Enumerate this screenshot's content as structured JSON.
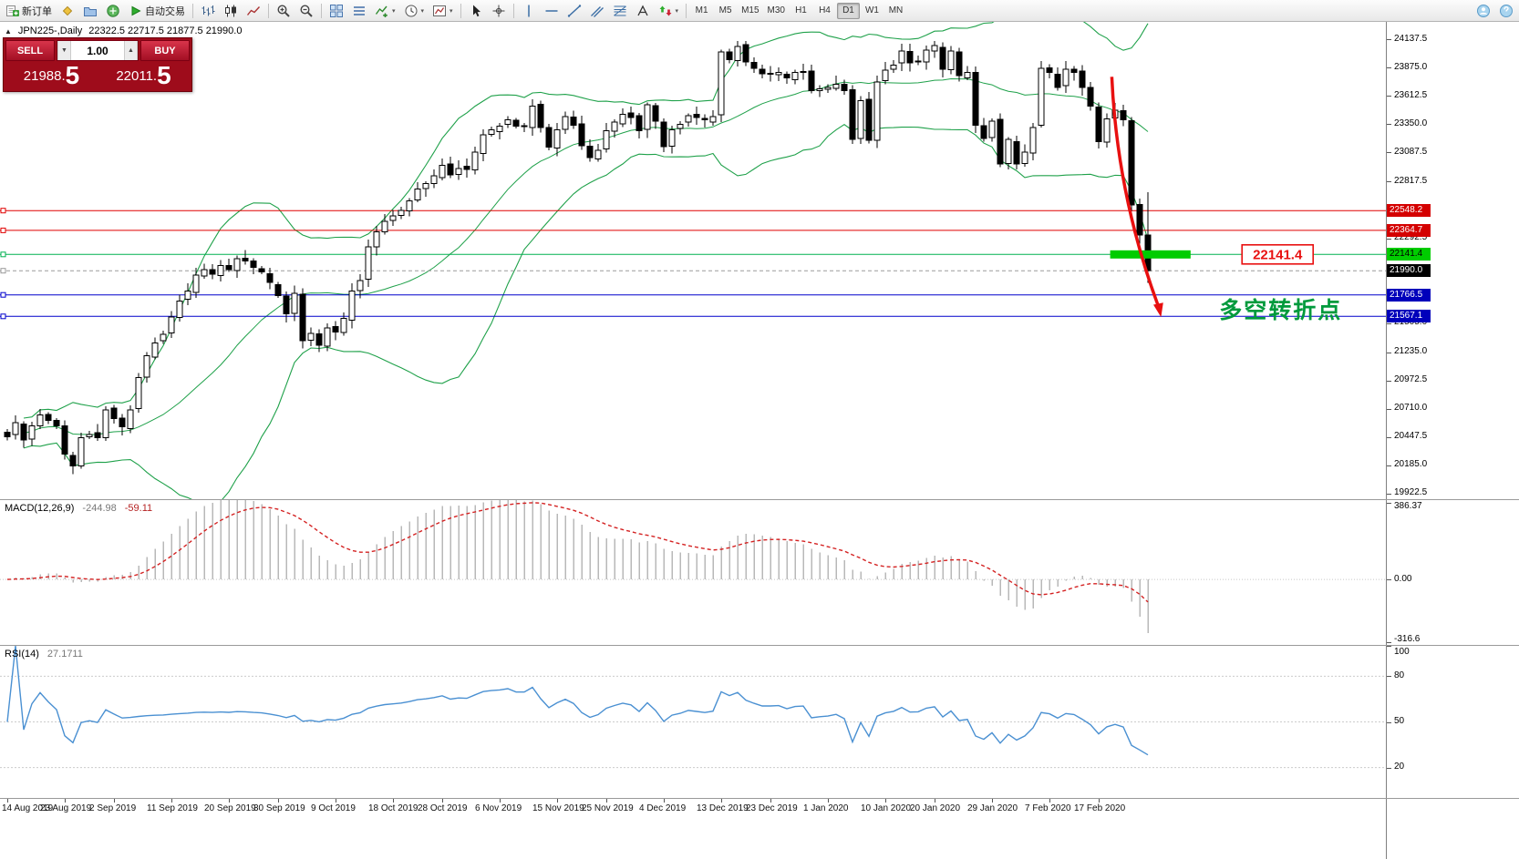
{
  "toolbar": {
    "items": [
      {
        "type": "button",
        "name": "new-order-button",
        "icon": "new-order-icon",
        "label": "新订单"
      },
      {
        "type": "button",
        "name": "market-watch-button",
        "icon": "market-watch-icon"
      },
      {
        "type": "button",
        "name": "profiles-button",
        "icon": "profiles-icon"
      },
      {
        "type": "button",
        "name": "data-window-button",
        "icon": "data-window-icon"
      },
      {
        "type": "button",
        "name": "auto-trading-button",
        "icon": "autotrade-icon",
        "label": "自动交易"
      },
      {
        "type": "sep"
      },
      {
        "type": "button",
        "name": "bar-chart-button",
        "icon": "bar-chart-icon"
      },
      {
        "type": "button",
        "name": "candlestick-button",
        "icon": "candlestick-icon"
      },
      {
        "type": "button",
        "name": "line-chart-button",
        "icon": "line-chart-icon"
      },
      {
        "type": "sep"
      },
      {
        "type": "button",
        "name": "zoom-in-button",
        "icon": "zoom-in-icon"
      },
      {
        "type": "button",
        "name": "zoom-out-button",
        "icon": "zoom-out-icon"
      },
      {
        "type": "sep"
      },
      {
        "type": "button",
        "name": "tile-windows-button",
        "icon": "tile-windows-icon"
      },
      {
        "type": "button",
        "name": "arrange-windows-button",
        "icon": "arrange-icon"
      },
      {
        "type": "button",
        "name": "indicators-button",
        "icon": "indicators-icon",
        "dropdown": true
      },
      {
        "type": "button",
        "name": "periods-button",
        "icon": "periods-icon",
        "dropdown": true
      },
      {
        "type": "button",
        "name": "templates-button",
        "icon": "templates-icon",
        "dropdown": true
      },
      {
        "type": "sep"
      },
      {
        "type": "button",
        "name": "cursor-button",
        "icon": "cursor-icon"
      },
      {
        "type": "button",
        "name": "crosshair-button",
        "icon": "crosshair-icon"
      },
      {
        "type": "sep"
      },
      {
        "type": "button",
        "name": "vertical-line-button",
        "icon": "vline-icon"
      },
      {
        "type": "button",
        "name": "horizontal-line-button",
        "icon": "hline-icon"
      },
      {
        "type": "button",
        "name": "trendline-button",
        "icon": "trendline-icon"
      },
      {
        "type": "button",
        "name": "channel-button",
        "icon": "channel-icon"
      },
      {
        "type": "button",
        "name": "fibonacci-button",
        "icon": "fibonacci-icon"
      },
      {
        "type": "button",
        "name": "text-button",
        "icon": "text-icon"
      },
      {
        "type": "button",
        "name": "arrows-button",
        "icon": "arrows-icon",
        "dropdown": true
      },
      {
        "type": "sep"
      }
    ],
    "timeframes": [
      {
        "label": "M1"
      },
      {
        "label": "M5"
      },
      {
        "label": "M15"
      },
      {
        "label": "M30"
      },
      {
        "label": "H1"
      },
      {
        "label": "H4"
      },
      {
        "label": "D1",
        "active": true
      },
      {
        "label": "W1"
      },
      {
        "label": "MN"
      }
    ],
    "right_items": [
      {
        "name": "community-button",
        "icon": "community-icon"
      },
      {
        "name": "help-button",
        "icon": "help-icon"
      }
    ]
  },
  "chart_header": {
    "expander_icon": "▲",
    "symbol_period": "JPN225-,Daily",
    "ohlc": "22322.5 22717.5 21877.5 21990.0"
  },
  "trade_panel": {
    "sell_label": "SELL",
    "buy_label": "BUY",
    "volume": "1.00",
    "volume_down_icon": "▼",
    "volume_up_icon": "▲",
    "sell_price_main": "21988.",
    "sell_price_pip": "5",
    "buy_price_main": "22011.",
    "buy_price_pip": "5"
  },
  "indicator_headers": {
    "macd_name": "MACD(12,26,9)",
    "macd_value": "-244.98",
    "macd_signal": "-59.11",
    "rsi_name": "RSI(14)",
    "rsi_value": "27.1711"
  },
  "colors": {
    "level_red": "#e00000",
    "level_green": "#00b050",
    "level_blue": "#0000cc",
    "current_price_line": "#9a9a9a",
    "highlight_green": "#00cc00",
    "arrow_red": "#e81010",
    "note_green": "#009a3c",
    "panel_red": "#9e0c1b",
    "bollinger_green": "#1fa14a",
    "macd_hist": "#b8b8b8",
    "macd_signal": "#d42222",
    "rsi_blue": "#4a90d2"
  },
  "chart_data": {
    "type": "candlestick",
    "symbol": "JPN225",
    "timeframe": "Daily",
    "price_range": [
      19870,
      24300
    ],
    "axis_ticks": [
      24137.5,
      23875.0,
      23612.5,
      23350.0,
      23087.5,
      22817.5,
      22292.5,
      21505.0,
      21235.0,
      20972.5,
      20710.0,
      20447.5,
      20185.0,
      19922.5
    ],
    "closes": [
      20450,
      20580,
      20420,
      20550,
      20650,
      20600,
      20550,
      20290,
      20180,
      20440,
      20470,
      20440,
      20700,
      20620,
      20540,
      20700,
      21000,
      21200,
      21320,
      21400,
      21560,
      21710,
      21800,
      21950,
      22000,
      21960,
      22040,
      22000,
      22100,
      22080,
      22020,
      21980,
      21880,
      21760,
      21590,
      21780,
      21340,
      21410,
      21300,
      21460,
      21420,
      21550,
      21800,
      21900,
      22210,
      22350,
      22450,
      22500,
      22550,
      22640,
      22750,
      22800,
      22870,
      22970,
      22880,
      22940,
      22930,
      23090,
      23250,
      23300,
      23330,
      23390,
      23330,
      23330,
      23520,
      23320,
      23140,
      23300,
      23420,
      23340,
      23150,
      23040,
      23110,
      23290,
      23370,
      23440,
      23410,
      23290,
      23530,
      23380,
      23140,
      23300,
      23350,
      23430,
      23410,
      23390,
      23420,
      24020,
      23950,
      24070,
      23930,
      23870,
      23820,
      23820,
      23830,
      23780,
      23830,
      23840,
      23660,
      23680,
      23690,
      23720,
      23660,
      23210,
      23570,
      23200,
      23740,
      23850,
      23900,
      24030,
      23920,
      23930,
      24040,
      24080,
      23860,
      24030,
      23800,
      23830,
      23340,
      23220,
      23380,
      22980,
      23210,
      22980,
      23090,
      23320,
      23870,
      23830,
      23690,
      23860,
      23830,
      23690,
      23520,
      23190,
      23400,
      23480,
      23390,
      22600,
      22320,
      21990
    ],
    "last_candle": [
      22322.5,
      22717.5,
      21877.5,
      21990.0
    ],
    "date_labels": [
      {
        "i": 0,
        "t": "14 Aug 2019"
      },
      {
        "i": 7,
        "t": "23 Aug 2019"
      },
      {
        "i": 13,
        "t": "2 Sep 2019"
      },
      {
        "i": 20,
        "t": "11 Sep 2019"
      },
      {
        "i": 27,
        "t": "20 Sep 2019"
      },
      {
        "i": 33,
        "t": "30 Sep 2019"
      },
      {
        "i": 40,
        "t": "9 Oct 2019"
      },
      {
        "i": 47,
        "t": "18 Oct 2019"
      },
      {
        "i": 53,
        "t": "28 Oct 2019"
      },
      {
        "i": 60,
        "t": "6 Nov 2019"
      },
      {
        "i": 67,
        "t": "15 Nov 2019"
      },
      {
        "i": 73,
        "t": "25 Nov 2019"
      },
      {
        "i": 80,
        "t": "4 Dec 2019"
      },
      {
        "i": 87,
        "t": "13 Dec 2019"
      },
      {
        "i": 93,
        "t": "23 Dec 2019"
      },
      {
        "i": 100,
        "t": "1 Jan 2020"
      },
      {
        "i": 107,
        "t": "10 Jan 2020"
      },
      {
        "i": 113,
        "t": "20 Jan 2020"
      },
      {
        "i": 120,
        "t": "29 Jan 2020"
      },
      {
        "i": 127,
        "t": "7 Feb 2020"
      },
      {
        "i": 133,
        "t": "17 Feb 2020"
      }
    ],
    "levels": [
      {
        "price": 22548.2,
        "color": "#e00000",
        "label": "22548.2",
        "label_bg": "#d40000",
        "label_fg": "#ffffff",
        "name": "resistance-line-1"
      },
      {
        "price": 22364.7,
        "color": "#e00000",
        "label": "22364.7",
        "label_bg": "#d40000",
        "label_fg": "#ffffff",
        "name": "resistance-line-2"
      },
      {
        "price": 22141.4,
        "color": "#00b050",
        "label": "22141.4",
        "label_bg": "#00cc00",
        "label_fg": "#000000",
        "name": "pivot-line"
      },
      {
        "price": 21990.0,
        "color": "#9a9a9a",
        "label": "21990.0",
        "label_bg": "#000000",
        "label_fg": "#ffffff",
        "style": "dash",
        "name": "current-price-line"
      },
      {
        "price": 21766.5,
        "color": "#0000cc",
        "label": "21766.5",
        "label_bg": "#0000bb",
        "label_fg": "#ffffff",
        "name": "support-line-1"
      },
      {
        "price": 21567.1,
        "color": "#0000cc",
        "label": "21567.1",
        "label_bg": "#0000bb",
        "label_fg": "#ffffff",
        "name": "support-line-2"
      }
    ],
    "bollinger": {
      "period": 20,
      "deviation": 2,
      "color": "#1fa14a"
    },
    "macd": {
      "params": [
        12,
        26,
        9
      ],
      "axis_ticks": [
        "386.37",
        "0.00",
        "-316.6"
      ],
      "range": [
        -330,
        400
      ],
      "hist_color": "#b8b8b8",
      "signal_color": "#d42222"
    },
    "rsi": {
      "period": 14,
      "axis_ticks": [
        "100",
        "80",
        "50",
        "20"
      ],
      "range": [
        0,
        100
      ],
      "levels": [
        80,
        50,
        20
      ],
      "color": "#4a90d2"
    },
    "drawings": {
      "trend_arrow": {
        "from_index": 134.6,
        "from_price": 23790,
        "to_index": 140.6,
        "to_price": 21560,
        "color": "#e81010"
      },
      "highlight_segment": {
        "from_index": 134.4,
        "to_index": 144.2,
        "price": 22141.4,
        "color": "#00cc00"
      },
      "price_callout": {
        "index": 154.8,
        "price": 22141.4,
        "text": "22141.4",
        "color": "#e81010"
      },
      "note": {
        "index": 155.2,
        "price": 21620,
        "text": "多空转折点",
        "color": "#009a3c"
      }
    }
  }
}
